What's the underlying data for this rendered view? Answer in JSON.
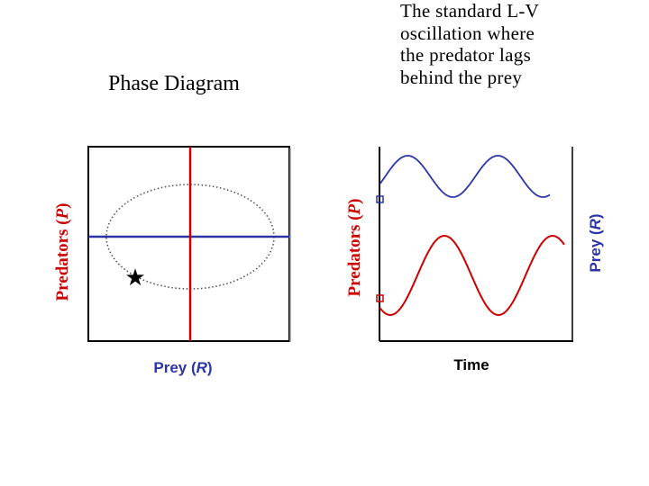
{
  "title_left": "Phase Diagram",
  "caption_right": {
    "lines": [
      "The standard L-V",
      "oscillation where",
      "the predator lags",
      "behind the prey"
    ]
  },
  "phase_plot": {
    "xlabel_main": "Prey (",
    "xlabel_var": "R",
    "xlabel_end": ")",
    "ylabel_main": "Predators (",
    "ylabel_var": "P",
    "ylabel_end": ")",
    "star_symbol": "★",
    "colors": {
      "prey": "#cc0000",
      "predator": "#2b35a8",
      "orbit": "#555555",
      "frame": "#000000"
    }
  },
  "time_plot": {
    "xlabel": "Time",
    "ylabel_left_main": "Predators (",
    "ylabel_left_var": "P",
    "ylabel_left_end": ")",
    "ylabel_right_main": "Prey (",
    "ylabel_right_var": "R",
    "ylabel_right_end": ")",
    "colors": {
      "prey": "#cc0000",
      "predator": "#2b35a8",
      "frame": "#000000"
    }
  }
}
